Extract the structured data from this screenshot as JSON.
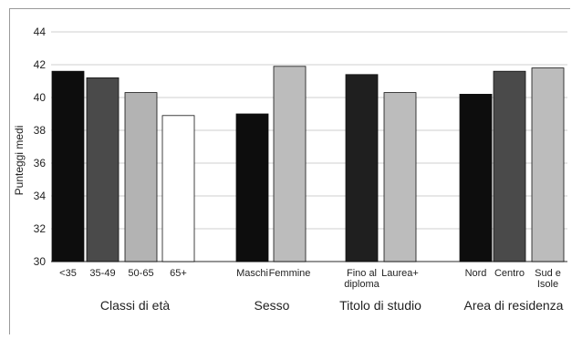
{
  "chart_data": {
    "type": "bar",
    "ylabel": "Punteggi medi",
    "ylim": [
      30,
      44
    ],
    "yticks": [
      30,
      32,
      34,
      36,
      38,
      40,
      42,
      44
    ],
    "grid": true,
    "groups": [
      {
        "name": "Classi di età",
        "categories": [
          "<35",
          "35-49",
          "50-65",
          "65+"
        ],
        "values": [
          41.6,
          41.2,
          40.3,
          38.9
        ],
        "colors": [
          "#0d0d0d",
          "#4a4a4a",
          "#b3b3b3",
          "#ffffff"
        ]
      },
      {
        "name": "Sesso",
        "categories": [
          "Maschi",
          "Femmine"
        ],
        "values": [
          39.0,
          41.9
        ],
        "colors": [
          "#0d0d0d",
          "#bcbcbc"
        ]
      },
      {
        "name": "Titolo di studio",
        "categories": [
          "Fino al diploma",
          "Laurea+"
        ],
        "category_lines": [
          [
            "Fino al",
            "diploma"
          ],
          [
            "Laurea+"
          ]
        ],
        "values": [
          41.4,
          40.3
        ],
        "colors": [
          "#1f1f1f",
          "#bcbcbc"
        ]
      },
      {
        "name": "Area di residenza",
        "categories": [
          "Nord",
          "Centro",
          "Sud e Isole"
        ],
        "category_lines": [
          [
            "Nord"
          ],
          [
            "Centro"
          ],
          [
            "Sud e",
            "Isole"
          ]
        ],
        "values": [
          40.2,
          41.6,
          41.8
        ],
        "colors": [
          "#0d0d0d",
          "#4a4a4a",
          "#bcbcbc"
        ]
      }
    ]
  }
}
